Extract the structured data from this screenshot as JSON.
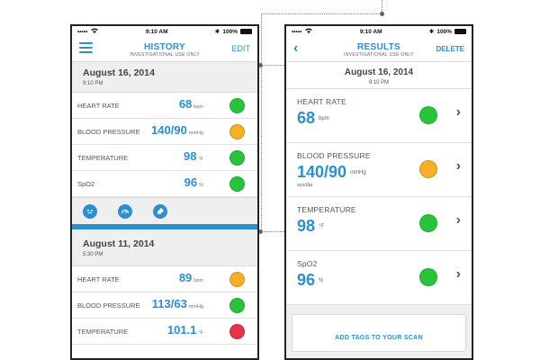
{
  "colors": {
    "accent": "#2b8fd0",
    "status_green": "#27c43a",
    "status_amber": "#f5b025",
    "status_red": "#e6324b"
  },
  "status_bar": {
    "time": "9:10 AM",
    "battery": "100%",
    "carrier": "•••••"
  },
  "history": {
    "title": "HISTORY",
    "subtitle": "INVESTIGATIONAL USE ONLY",
    "edit_label": "EDIT",
    "sections": [
      {
        "date": "August 16, 2014",
        "time": "9:10 PM",
        "rows": [
          {
            "label": "HEART RATE",
            "value": "68",
            "unit": "bpm",
            "status": "green"
          },
          {
            "label": "BLOOD PRESSURE",
            "value": "140/90",
            "unit": "mmHg",
            "status": "amber"
          },
          {
            "label": "TEMPERATURE",
            "value": "98",
            "unit": "°F",
            "status": "green"
          },
          {
            "label": "SpO2",
            "value": "96",
            "unit": "%",
            "status": "green"
          }
        ],
        "icons": [
          "face-icon",
          "gauge-icon",
          "tag-icon"
        ]
      },
      {
        "date": "August 11, 2014",
        "time": "5:30 PM",
        "rows": [
          {
            "label": "HEART RATE",
            "value": "89",
            "unit": "bpm",
            "status": "amber"
          },
          {
            "label": "BLOOD PRESSURE",
            "value": "113/63",
            "unit": "mmHg",
            "status": "green"
          },
          {
            "label": "TEMPERATURE",
            "value": "101.1",
            "unit": "°F",
            "status": "red"
          }
        ]
      }
    ]
  },
  "results": {
    "title": "RESULTS",
    "subtitle": "INVESTIGATIONAL USE ONLY",
    "delete_label": "DELETE",
    "date": "August 16, 2014",
    "time": "9:10 PM",
    "rows": [
      {
        "label": "HEART RATE",
        "value": "68",
        "unit": "bpm",
        "sub": "",
        "status": "green"
      },
      {
        "label": "BLOOD PRESSURE",
        "value": "140/90",
        "unit": "mmHg",
        "sub": "sys/dia",
        "status": "amber"
      },
      {
        "label": "TEMPERATURE",
        "value": "98",
        "unit": "°F",
        "sub": "",
        "status": "green"
      },
      {
        "label": "SpO2",
        "value": "96",
        "unit": "%",
        "sub": "",
        "status": "green"
      }
    ],
    "tag_button_label": "ADD TAGS TO YOUR SCAN"
  }
}
